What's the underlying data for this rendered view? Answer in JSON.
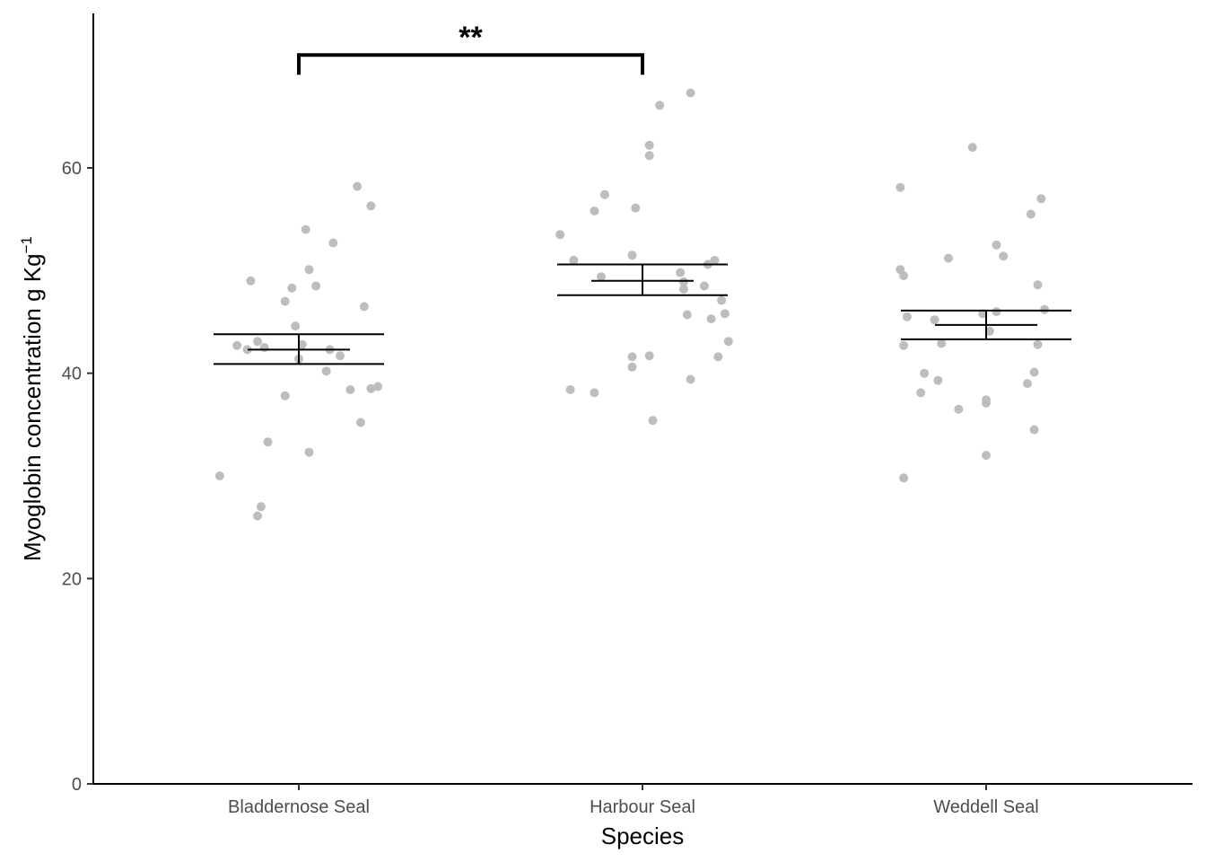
{
  "chart_data": {
    "type": "scatter",
    "xlabel": "Species",
    "ylabel": "Myoglobin concentration g Kg",
    "ylabel_superscript": "−1",
    "ylim": [
      0,
      75
    ],
    "yticks": [
      0,
      20,
      40,
      60
    ],
    "grid": false,
    "categories": [
      "Bladdernose Seal",
      "Harbour Seal",
      "Weddell Seal"
    ],
    "colors": {
      "points": "#bdbdbd",
      "lines": "#000000"
    },
    "series": [
      {
        "category": "Bladdernose Seal",
        "points": [
          {
            "dx": -0.23,
            "y": 30.0
          },
          {
            "dx": -0.18,
            "y": 42.7
          },
          {
            "dx": -0.15,
            "y": 42.3
          },
          {
            "dx": -0.14,
            "y": 49.0
          },
          {
            "dx": -0.12,
            "y": 43.1
          },
          {
            "dx": -0.12,
            "y": 26.1
          },
          {
            "dx": -0.11,
            "y": 27.0
          },
          {
            "dx": -0.1,
            "y": 42.5
          },
          {
            "dx": -0.09,
            "y": 33.3
          },
          {
            "dx": -0.04,
            "y": 37.8
          },
          {
            "dx": -0.04,
            "y": 47.0
          },
          {
            "dx": -0.02,
            "y": 48.3
          },
          {
            "dx": -0.01,
            "y": 44.6
          },
          {
            "dx": 0.0,
            "y": 41.4
          },
          {
            "dx": 0.01,
            "y": 42.8
          },
          {
            "dx": 0.02,
            "y": 54.0
          },
          {
            "dx": 0.03,
            "y": 32.3
          },
          {
            "dx": 0.03,
            "y": 50.1
          },
          {
            "dx": 0.05,
            "y": 48.5
          },
          {
            "dx": 0.08,
            "y": 40.2
          },
          {
            "dx": 0.09,
            "y": 42.3
          },
          {
            "dx": 0.1,
            "y": 52.7
          },
          {
            "dx": 0.12,
            "y": 41.7
          },
          {
            "dx": 0.15,
            "y": 38.4
          },
          {
            "dx": 0.17,
            "y": 58.2
          },
          {
            "dx": 0.18,
            "y": 35.2
          },
          {
            "dx": 0.19,
            "y": 46.5
          },
          {
            "dx": 0.21,
            "y": 56.3
          },
          {
            "dx": 0.21,
            "y": 38.5
          },
          {
            "dx": 0.23,
            "y": 38.7
          }
        ],
        "mean": 42.3,
        "se_low": 40.9,
        "se_high": 43.8
      },
      {
        "category": "Harbour Seal",
        "points": [
          {
            "dx": -0.24,
            "y": 53.5
          },
          {
            "dx": -0.21,
            "y": 38.4
          },
          {
            "dx": -0.2,
            "y": 51.0
          },
          {
            "dx": -0.14,
            "y": 55.8
          },
          {
            "dx": -0.14,
            "y": 38.1
          },
          {
            "dx": -0.12,
            "y": 49.4
          },
          {
            "dx": -0.11,
            "y": 57.4
          },
          {
            "dx": -0.03,
            "y": 41.6
          },
          {
            "dx": -0.03,
            "y": 51.5
          },
          {
            "dx": -0.03,
            "y": 40.6
          },
          {
            "dx": -0.02,
            "y": 56.1
          },
          {
            "dx": 0.02,
            "y": 62.2
          },
          {
            "dx": 0.02,
            "y": 61.2
          },
          {
            "dx": 0.02,
            "y": 41.7
          },
          {
            "dx": 0.03,
            "y": 35.4
          },
          {
            "dx": 0.05,
            "y": 66.1
          },
          {
            "dx": 0.11,
            "y": 49.8
          },
          {
            "dx": 0.12,
            "y": 48.9
          },
          {
            "dx": 0.12,
            "y": 48.2
          },
          {
            "dx": 0.13,
            "y": 45.7
          },
          {
            "dx": 0.14,
            "y": 67.3
          },
          {
            "dx": 0.14,
            "y": 39.4
          },
          {
            "dx": 0.18,
            "y": 48.5
          },
          {
            "dx": 0.19,
            "y": 50.6
          },
          {
            "dx": 0.2,
            "y": 45.3
          },
          {
            "dx": 0.21,
            "y": 51.0
          },
          {
            "dx": 0.22,
            "y": 41.6
          },
          {
            "dx": 0.23,
            "y": 47.1
          },
          {
            "dx": 0.24,
            "y": 45.8
          },
          {
            "dx": 0.25,
            "y": 43.1
          }
        ],
        "mean": 49.0,
        "se_low": 47.6,
        "se_high": 50.6
      },
      {
        "category": "Weddell Seal",
        "points": [
          {
            "dx": -0.25,
            "y": 58.1
          },
          {
            "dx": -0.25,
            "y": 50.1
          },
          {
            "dx": -0.24,
            "y": 49.5
          },
          {
            "dx": -0.24,
            "y": 42.7
          },
          {
            "dx": -0.24,
            "y": 29.8
          },
          {
            "dx": -0.23,
            "y": 45.5
          },
          {
            "dx": -0.19,
            "y": 38.1
          },
          {
            "dx": -0.18,
            "y": 40.0
          },
          {
            "dx": -0.15,
            "y": 45.2
          },
          {
            "dx": -0.14,
            "y": 39.3
          },
          {
            "dx": -0.13,
            "y": 42.9
          },
          {
            "dx": -0.11,
            "y": 51.2
          },
          {
            "dx": -0.08,
            "y": 36.5
          },
          {
            "dx": -0.04,
            "y": 62.0
          },
          {
            "dx": -0.01,
            "y": 45.8
          },
          {
            "dx": 0.0,
            "y": 37.1
          },
          {
            "dx": 0.0,
            "y": 37.4
          },
          {
            "dx": 0.0,
            "y": 32.0
          },
          {
            "dx": 0.01,
            "y": 44.1
          },
          {
            "dx": 0.03,
            "y": 52.5
          },
          {
            "dx": 0.03,
            "y": 46.0
          },
          {
            "dx": 0.05,
            "y": 51.4
          },
          {
            "dx": 0.12,
            "y": 39.0
          },
          {
            "dx": 0.13,
            "y": 55.5
          },
          {
            "dx": 0.14,
            "y": 40.1
          },
          {
            "dx": 0.14,
            "y": 34.5
          },
          {
            "dx": 0.15,
            "y": 48.6
          },
          {
            "dx": 0.15,
            "y": 42.8
          },
          {
            "dx": 0.16,
            "y": 57.0
          },
          {
            "dx": 0.17,
            "y": 46.2
          }
        ],
        "mean": 44.7,
        "se_low": 43.3,
        "se_high": 46.1
      }
    ],
    "significance": [
      {
        "from": "Bladdernose Seal",
        "to": "Harbour Seal",
        "label": "**",
        "y": 71
      }
    ]
  }
}
